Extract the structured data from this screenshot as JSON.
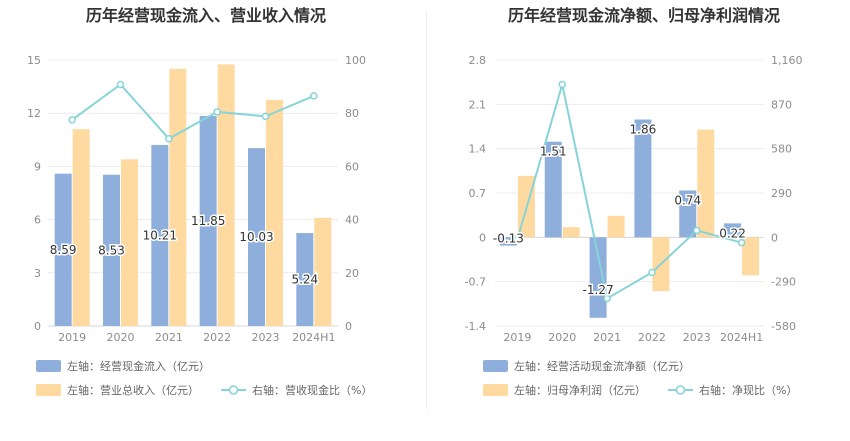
{
  "colors": {
    "bar_blue": "#8eaedc",
    "bar_orange": "#fed9a0",
    "line_cyan": "#86d4d8",
    "axis_text": "#8c8c8c",
    "grid": "#ececec",
    "title": "#333333",
    "legend_text": "#666666"
  },
  "chart_data": [
    {
      "type": "bar",
      "title": "历年经营现金流入、营业收入情况",
      "categories": [
        "2019",
        "2020",
        "2021",
        "2022",
        "2023",
        "2024H1"
      ],
      "y_left": {
        "ticks": [
          "0",
          "3",
          "6",
          "9",
          "12",
          "15"
        ],
        "lim": [
          0,
          15
        ]
      },
      "y_right": {
        "ticks": [
          "0",
          "20",
          "40",
          "60",
          "80",
          "100"
        ],
        "lim": [
          0,
          100
        ]
      },
      "series": [
        {
          "name": "左轴：经营现金流入（亿元）",
          "kind": "bar",
          "axis": "left",
          "color": "#8eaedc",
          "values": [
            8.59,
            8.53,
            10.21,
            11.85,
            10.03,
            5.24
          ],
          "labels": [
            "8.59",
            "8.53",
            "10.21",
            "11.85",
            "10.03",
            "5.24"
          ]
        },
        {
          "name": "左轴：营业总收入（亿元）",
          "kind": "bar",
          "axis": "left",
          "color": "#fed9a0",
          "values": [
            11.1,
            9.4,
            14.5,
            14.75,
            12.75,
            6.1
          ]
        },
        {
          "name": "右轴：营收现金比（%）",
          "kind": "line",
          "axis": "right",
          "color": "#86d4d8",
          "values": [
            77.5,
            90.8,
            70.4,
            80.5,
            78.8,
            86.5
          ]
        }
      ],
      "grid": true,
      "legend_position": "bottom"
    },
    {
      "type": "bar",
      "title": "历年经营现金流净额、归母净利润情况",
      "categories": [
        "2019",
        "2020",
        "2021",
        "2022",
        "2023",
        "2024H1"
      ],
      "y_left": {
        "ticks": [
          "-1.4",
          "-0.7",
          "0",
          "0.7",
          "1.4",
          "2.1",
          "2.8"
        ],
        "lim": [
          -1.4,
          2.8
        ]
      },
      "y_right": {
        "ticks": [
          "-580",
          "-290",
          "0",
          "290",
          "580",
          "870",
          "1,160"
        ],
        "lim": [
          -580,
          1160
        ]
      },
      "series": [
        {
          "name": "左轴：经营活动现金流净额（亿元）",
          "kind": "bar",
          "axis": "left",
          "color": "#8eaedc",
          "values": [
            -0.13,
            1.51,
            -1.27,
            1.86,
            0.74,
            0.22
          ],
          "labels": [
            "-0.13",
            "1.51",
            "-1.27",
            "1.86",
            "0.74",
            "0.22"
          ]
        },
        {
          "name": "左轴：归母净利润（亿元）",
          "kind": "bar",
          "axis": "left",
          "color": "#fed9a0",
          "values": [
            0.97,
            0.16,
            0.34,
            -0.85,
            1.7,
            -0.6
          ]
        },
        {
          "name": "右轴：净现比（%）",
          "kind": "line",
          "axis": "right",
          "color": "#86d4d8",
          "values": [
            -13,
            1000,
            -400,
            -230,
            45,
            -35
          ]
        }
      ],
      "grid": true,
      "legend_position": "bottom"
    }
  ]
}
